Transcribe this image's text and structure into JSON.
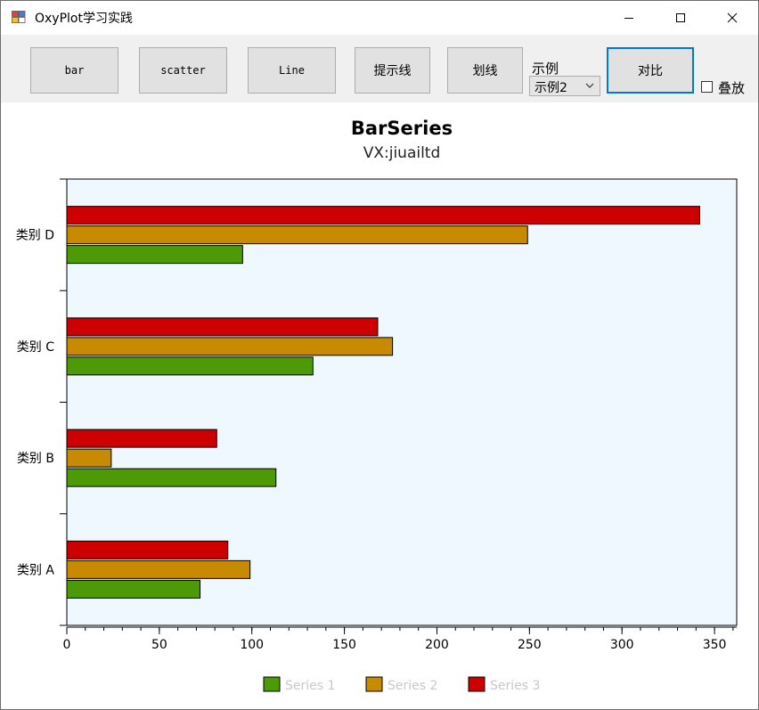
{
  "window": {
    "title": "OxyPlot学习实践",
    "minimize_glyph": "—",
    "maximize_glyph": "☐",
    "close_glyph": "✕"
  },
  "toolbar": {
    "bar_label": "bar",
    "scatter_label": "scatter",
    "line_label": "Line",
    "tooltip_label": "提示线",
    "draw_label": "划线",
    "example_label": "示例",
    "example_value": "示例2",
    "compare_label": "对比",
    "stack_label": "叠放",
    "stack_checked": false
  },
  "colors": {
    "plot_bg": "#f0f8ff",
    "series1": "#4e9a06",
    "series2": "#c88a00",
    "series3": "#cc0000",
    "window_border": "#6e6e6e",
    "focus_border": "#0078d7"
  },
  "icons": [
    "app-icon",
    "chevron-down-icon"
  ],
  "chart_data": {
    "type": "bar",
    "orientation": "horizontal",
    "title": "BarSeries",
    "subtitle": "VX:jiuailtd",
    "categories": [
      "类别 A",
      "类别 B",
      "类别 C",
      "类别 D"
    ],
    "series": [
      {
        "name": "Series 1",
        "color": "#4e9a06",
        "values": [
          72,
          113,
          133,
          95
        ]
      },
      {
        "name": "Series 2",
        "color": "#c88a00",
        "values": [
          99,
          24,
          176,
          249
        ]
      },
      {
        "name": "Series 3",
        "color": "#cc0000",
        "values": [
          87,
          81,
          168,
          342
        ]
      }
    ],
    "xlim": [
      0,
      362
    ],
    "x_ticks": [
      "0",
      "50",
      "100",
      "150",
      "200",
      "250",
      "300",
      "350"
    ],
    "x_tick_values": [
      0,
      50,
      100,
      150,
      200,
      250,
      300,
      350
    ],
    "x_minor_step": 10,
    "grid": false,
    "legend_position": "bottom-center"
  }
}
